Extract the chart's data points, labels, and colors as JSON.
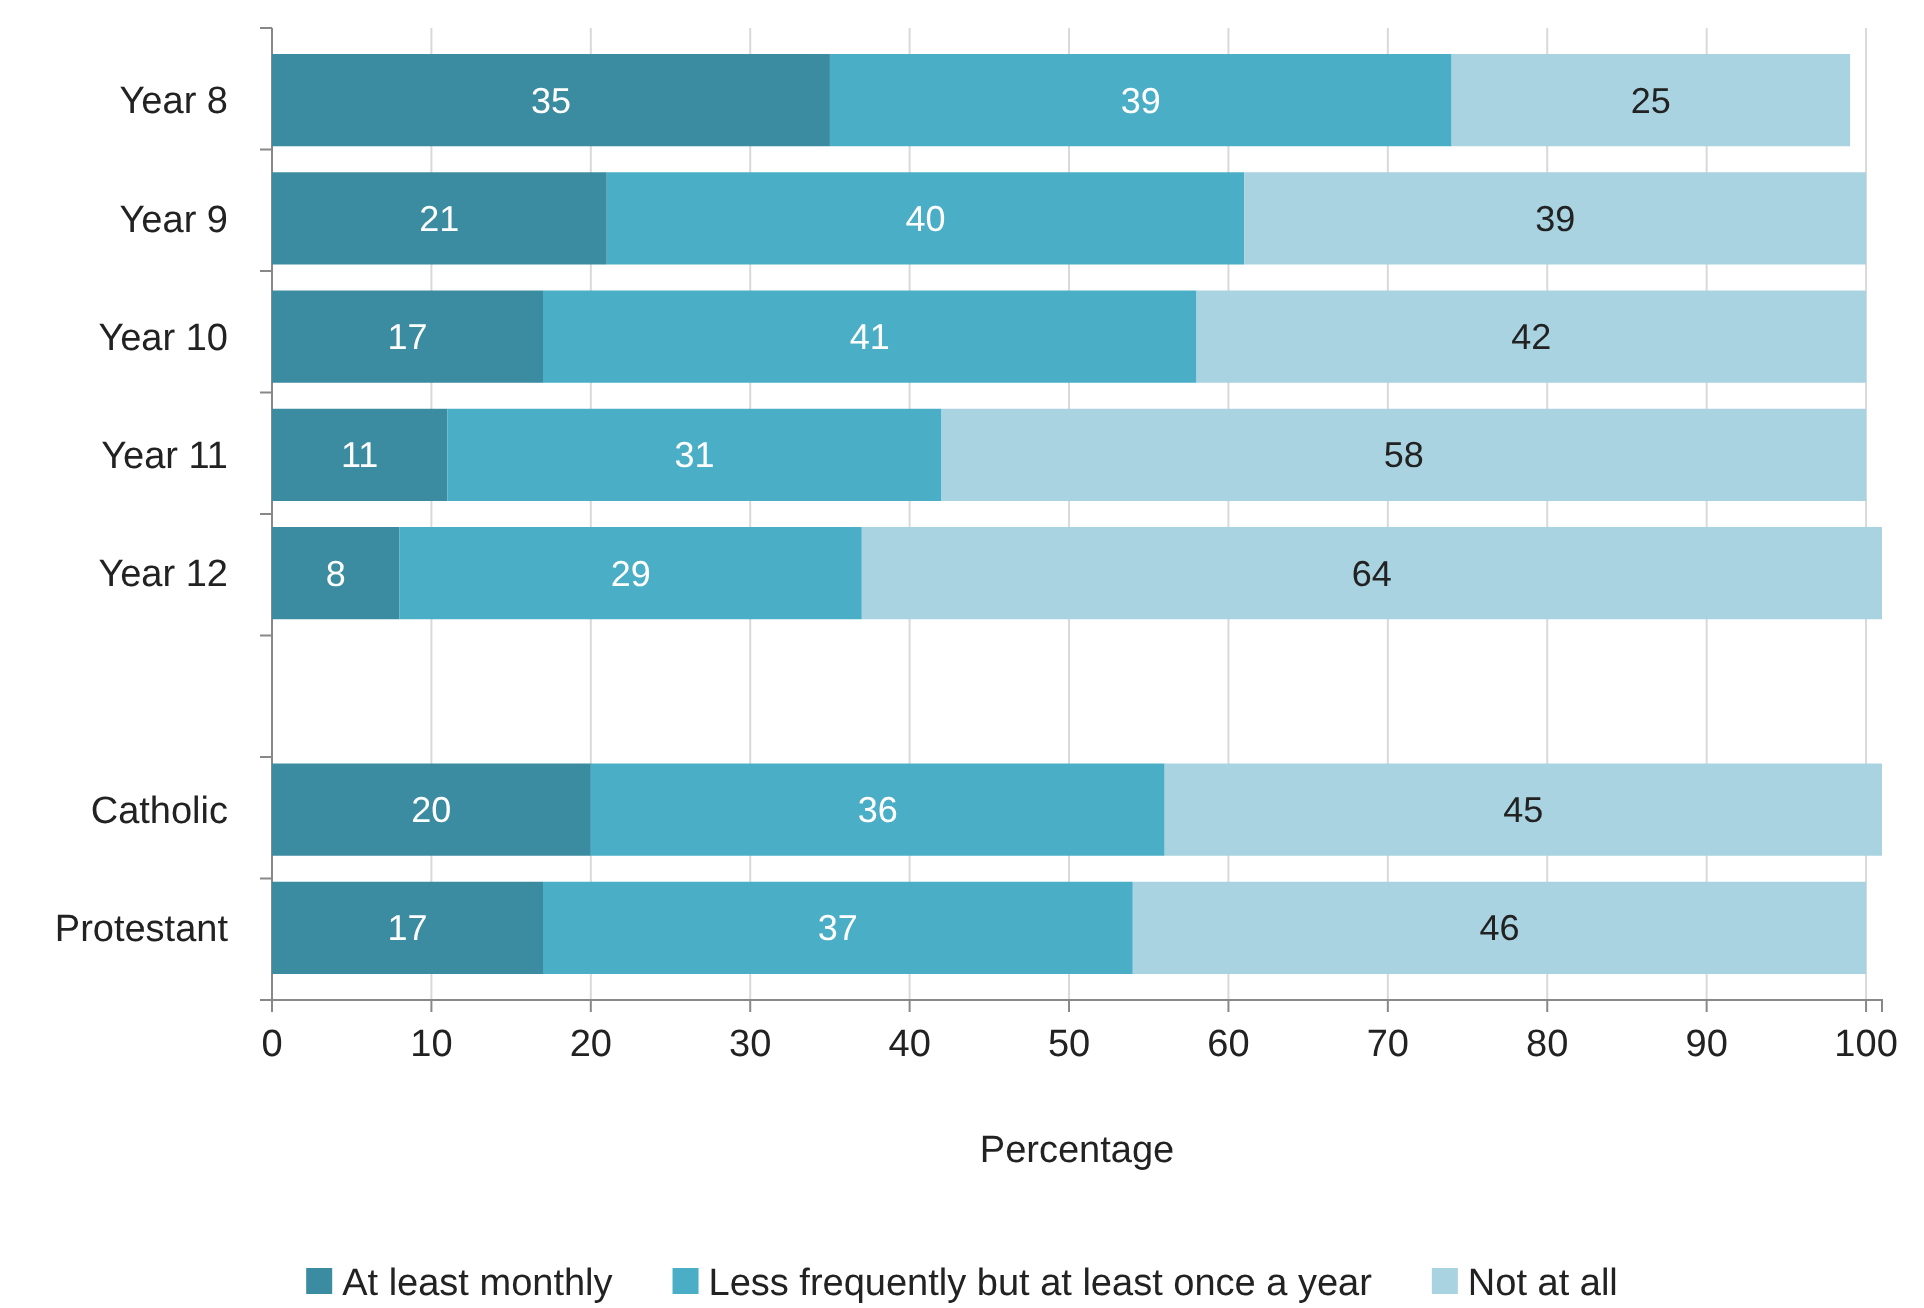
{
  "chart_data": {
    "type": "bar",
    "orientation": "horizontal",
    "stacked": true,
    "xlabel": "Percentage",
    "categories": [
      "Year 8",
      "Year 9",
      "Year 10",
      "Year 11",
      "Year 12",
      null,
      "Catholic",
      "Protestant"
    ],
    "series": [
      {
        "name": "At least monthly",
        "color": "#3b8ba1",
        "values": [
          35,
          21,
          17,
          11,
          8,
          null,
          20,
          17
        ]
      },
      {
        "name": "Less frequently but at least once a year",
        "color": "#4aaec7",
        "values": [
          39,
          40,
          41,
          31,
          29,
          null,
          36,
          37
        ]
      },
      {
        "name": "Not at all",
        "color": "#a9d3e0",
        "values": [
          25,
          39,
          42,
          58,
          64,
          null,
          45,
          46
        ]
      }
    ],
    "xlim": [
      0,
      101
    ],
    "xticks": [
      0,
      10,
      20,
      30,
      40,
      50,
      60,
      70,
      80,
      90,
      100
    ],
    "grid": "x",
    "legend": "bottom",
    "data_labels": true
  }
}
